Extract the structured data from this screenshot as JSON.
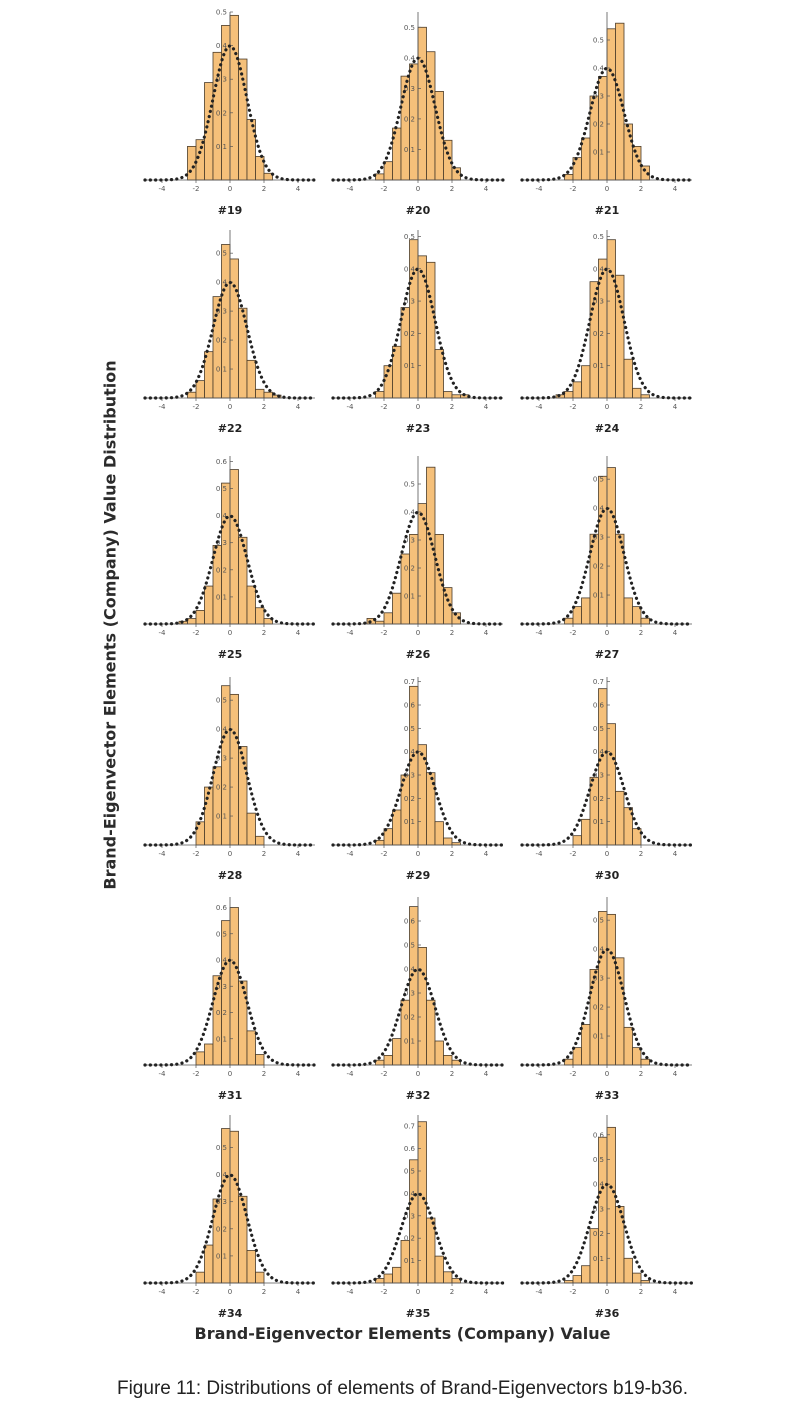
{
  "style": {
    "bar_fill": "#f5c07a",
    "bar_stroke": "#4a3b2a",
    "curve_color": "#222222",
    "axis_color": "#555555"
  },
  "figure": {
    "ylabel": "Brand-Eigenvector Elements (Company) Value Distribution",
    "xlabel": "Brand-Eigenvector Elements (Company) Value",
    "caption": "Figure 11: Distributions of elements of Brand-Eigenvectors b19-b36."
  },
  "chart_data": [
    {
      "type": "bar",
      "label": "#19",
      "bin_edges": [
        -2.5,
        -2,
        -1.5,
        -1,
        -0.5,
        0,
        0.5,
        1,
        1.5,
        2,
        2.5
      ],
      "values": [
        0.1,
        0.12,
        0.29,
        0.38,
        0.46,
        0.49,
        0.36,
        0.18,
        0.07,
        0.02
      ],
      "ylim": [
        0,
        0.5
      ],
      "yticks": [
        0.1,
        0.2,
        0.3,
        0.4,
        0.5
      ],
      "xlim": [
        -5,
        5
      ],
      "xticks": [
        -4,
        -2,
        0,
        2,
        4
      ],
      "overlay": "standard normal density (dotted)"
    },
    {
      "type": "bar",
      "label": "#20",
      "bin_edges": [
        -2.5,
        -2,
        -1.5,
        -1,
        -0.5,
        0,
        0.5,
        1,
        1.5,
        2,
        2.5
      ],
      "values": [
        0.02,
        0.06,
        0.17,
        0.34,
        0.38,
        0.5,
        0.42,
        0.29,
        0.13,
        0.04
      ],
      "ylim": [
        0,
        0.55
      ],
      "yticks": [
        0.1,
        0.2,
        0.3,
        0.4,
        0.5
      ],
      "xlim": [
        -5,
        5
      ],
      "xticks": [
        -4,
        -2,
        0,
        2,
        4
      ],
      "overlay": "standard normal density (dotted)"
    },
    {
      "type": "bar",
      "label": "#21",
      "bin_edges": [
        -2.5,
        -2,
        -1.5,
        -1,
        -0.5,
        0,
        0.5,
        1,
        1.5,
        2,
        2.5
      ],
      "values": [
        0.02,
        0.08,
        0.15,
        0.3,
        0.37,
        0.54,
        0.56,
        0.2,
        0.12,
        0.05
      ],
      "ylim": [
        0,
        0.6
      ],
      "yticks": [
        0.1,
        0.2,
        0.3,
        0.4,
        0.5
      ],
      "xlim": [
        -5,
        5
      ],
      "xticks": [
        -4,
        -2,
        0,
        2,
        4
      ],
      "overlay": "standard normal density (dotted)"
    },
    {
      "type": "bar",
      "label": "#22",
      "bin_edges": [
        -2.5,
        -2,
        -1.5,
        -1,
        -0.5,
        0,
        0.5,
        1,
        1.5,
        2,
        2.5,
        3
      ],
      "values": [
        0.02,
        0.06,
        0.16,
        0.35,
        0.53,
        0.48,
        0.31,
        0.13,
        0.03,
        0.02,
        0.01
      ],
      "ylim": [
        0,
        0.58
      ],
      "yticks": [
        0.1,
        0.2,
        0.3,
        0.4,
        0.5
      ],
      "xlim": [
        -5,
        5
      ],
      "xticks": [
        -4,
        -2,
        0,
        2,
        4
      ],
      "overlay": "standard normal density (dotted)"
    },
    {
      "type": "bar",
      "label": "#23",
      "bin_edges": [
        -2.5,
        -2,
        -1.5,
        -1,
        -0.5,
        0,
        0.5,
        1,
        1.5,
        2,
        2.5,
        3
      ],
      "values": [
        0.02,
        0.1,
        0.16,
        0.28,
        0.49,
        0.44,
        0.42,
        0.15,
        0.02,
        0.01,
        0.01
      ],
      "ylim": [
        0,
        0.52
      ],
      "yticks": [
        0.1,
        0.2,
        0.3,
        0.4,
        0.5
      ],
      "xlim": [
        -5,
        5
      ],
      "xticks": [
        -4,
        -2,
        0,
        2,
        4
      ],
      "overlay": "standard normal density (dotted)"
    },
    {
      "type": "bar",
      "label": "#24",
      "bin_edges": [
        -3,
        -2.5,
        -2,
        -1.5,
        -1,
        -0.5,
        0,
        0.5,
        1,
        1.5,
        2,
        2.5
      ],
      "values": [
        0.01,
        0.02,
        0.05,
        0.1,
        0.36,
        0.43,
        0.49,
        0.38,
        0.12,
        0.03,
        0.01
      ],
      "ylim": [
        0,
        0.52
      ],
      "yticks": [
        0.1,
        0.2,
        0.3,
        0.4,
        0.5
      ],
      "xlim": [
        -5,
        5
      ],
      "xticks": [
        -4,
        -2,
        0,
        2,
        4
      ],
      "overlay": "standard normal density (dotted)"
    },
    {
      "type": "bar",
      "label": "#25",
      "bin_edges": [
        -3,
        -2.5,
        -2,
        -1.5,
        -1,
        -0.5,
        0,
        0.5,
        1,
        1.5,
        2,
        2.5
      ],
      "values": [
        0.01,
        0.02,
        0.05,
        0.14,
        0.29,
        0.52,
        0.57,
        0.32,
        0.14,
        0.06,
        0.02
      ],
      "ylim": [
        0,
        0.62
      ],
      "yticks": [
        0.1,
        0.2,
        0.3,
        0.4,
        0.5,
        0.6
      ],
      "xlim": [
        -5,
        5
      ],
      "xticks": [
        -4,
        -2,
        0,
        2,
        4
      ],
      "overlay": "standard normal density (dotted)"
    },
    {
      "type": "bar",
      "label": "#26",
      "bin_edges": [
        -3,
        -2.5,
        -2,
        -1.5,
        -1,
        -0.5,
        0,
        0.5,
        1,
        1.5,
        2,
        2.5
      ],
      "values": [
        0.02,
        0.01,
        0.04,
        0.11,
        0.25,
        0.32,
        0.43,
        0.56,
        0.32,
        0.13,
        0.04
      ],
      "ylim": [
        0,
        0.6
      ],
      "yticks": [
        0.1,
        0.2,
        0.3,
        0.4,
        0.5
      ],
      "xlim": [
        -5,
        5
      ],
      "xticks": [
        -4,
        -2,
        0,
        2,
        4
      ],
      "overlay": "standard normal density (dotted)"
    },
    {
      "type": "bar",
      "label": "#27",
      "bin_edges": [
        -2.5,
        -2,
        -1.5,
        -1,
        -0.5,
        0,
        0.5,
        1,
        1.5,
        2,
        2.5
      ],
      "values": [
        0.02,
        0.06,
        0.09,
        0.31,
        0.51,
        0.54,
        0.31,
        0.09,
        0.06,
        0.02
      ],
      "ylim": [
        0,
        0.58
      ],
      "yticks": [
        0.1,
        0.2,
        0.3,
        0.4,
        0.5
      ],
      "xlim": [
        -5,
        5
      ],
      "xticks": [
        -4,
        -2,
        0,
        2,
        4
      ],
      "overlay": "standard normal density (dotted)"
    },
    {
      "type": "bar",
      "label": "#28",
      "bin_edges": [
        -2,
        -1.5,
        -1,
        -0.5,
        0,
        0.5,
        1,
        1.5,
        2
      ],
      "values": [
        0.08,
        0.2,
        0.27,
        0.55,
        0.52,
        0.34,
        0.11,
        0.03
      ],
      "ylim": [
        0,
        0.58
      ],
      "yticks": [
        0.1,
        0.2,
        0.3,
        0.4,
        0.5
      ],
      "xlim": [
        -5,
        5
      ],
      "xticks": [
        -4,
        -2,
        0,
        2,
        4
      ],
      "overlay": "standard normal density (dotted)"
    },
    {
      "type": "bar",
      "label": "#29",
      "bin_edges": [
        -2.5,
        -2,
        -1.5,
        -1,
        -0.5,
        0,
        0.5,
        1,
        1.5,
        2,
        2.5
      ],
      "values": [
        0.02,
        0.07,
        0.15,
        0.3,
        0.68,
        0.43,
        0.31,
        0.1,
        0.03,
        0.01
      ],
      "ylim": [
        0,
        0.72
      ],
      "yticks": [
        0.1,
        0.2,
        0.3,
        0.4,
        0.5,
        0.6,
        0.7
      ],
      "xlim": [
        -5,
        5
      ],
      "xticks": [
        -4,
        -2,
        0,
        2,
        4
      ],
      "overlay": "standard normal density (dotted)"
    },
    {
      "type": "bar",
      "label": "#30",
      "bin_edges": [
        -2,
        -1.5,
        -1,
        -0.5,
        0,
        0.5,
        1,
        1.5,
        2
      ],
      "values": [
        0.04,
        0.11,
        0.29,
        0.67,
        0.52,
        0.23,
        0.16,
        0.07
      ],
      "ylim": [
        0,
        0.72
      ],
      "yticks": [
        0.1,
        0.2,
        0.3,
        0.4,
        0.5,
        0.6,
        0.7
      ],
      "xlim": [
        -5,
        5
      ],
      "xticks": [
        -4,
        -2,
        0,
        2,
        4
      ],
      "overlay": "standard normal density (dotted)"
    },
    {
      "type": "bar",
      "label": "#31",
      "bin_edges": [
        -2,
        -1.5,
        -1,
        -0.5,
        0,
        0.5,
        1,
        1.5,
        2
      ],
      "values": [
        0.05,
        0.08,
        0.34,
        0.55,
        0.6,
        0.32,
        0.13,
        0.04
      ],
      "ylim": [
        0,
        0.64
      ],
      "yticks": [
        0.1,
        0.2,
        0.3,
        0.4,
        0.5,
        0.6
      ],
      "xlim": [
        -5,
        5
      ],
      "xticks": [
        -4,
        -2,
        0,
        2,
        4
      ],
      "overlay": "standard normal density (dotted)"
    },
    {
      "type": "bar",
      "label": "#32",
      "bin_edges": [
        -2.5,
        -2,
        -1.5,
        -1,
        -0.5,
        0,
        0.5,
        1,
        1.5,
        2,
        2.5
      ],
      "values": [
        0.02,
        0.04,
        0.11,
        0.27,
        0.66,
        0.49,
        0.27,
        0.1,
        0.04,
        0.02
      ],
      "ylim": [
        0,
        0.7
      ],
      "yticks": [
        0.1,
        0.2,
        0.3,
        0.4,
        0.5,
        0.6
      ],
      "xlim": [
        -5,
        5
      ],
      "xticks": [
        -4,
        -2,
        0,
        2,
        4
      ],
      "overlay": "standard normal density (dotted)"
    },
    {
      "type": "bar",
      "label": "#33",
      "bin_edges": [
        -2.5,
        -2,
        -1.5,
        -1,
        -0.5,
        0,
        0.5,
        1,
        1.5,
        2,
        2.5
      ],
      "values": [
        0.02,
        0.06,
        0.14,
        0.33,
        0.53,
        0.52,
        0.37,
        0.13,
        0.06,
        0.02
      ],
      "ylim": [
        0,
        0.58
      ],
      "yticks": [
        0.1,
        0.2,
        0.3,
        0.4,
        0.5
      ],
      "xlim": [
        -5,
        5
      ],
      "xticks": [
        -4,
        -2,
        0,
        2,
        4
      ],
      "overlay": "standard normal density (dotted)"
    },
    {
      "type": "bar",
      "label": "#34",
      "bin_edges": [
        -2,
        -1.5,
        -1,
        -0.5,
        0,
        0.5,
        1,
        1.5,
        2
      ],
      "values": [
        0.04,
        0.14,
        0.31,
        0.57,
        0.56,
        0.32,
        0.12,
        0.04
      ],
      "ylim": [
        0,
        0.62
      ],
      "yticks": [
        0.1,
        0.2,
        0.3,
        0.4,
        0.5
      ],
      "xlim": [
        -5,
        5
      ],
      "xticks": [
        -4,
        -2,
        0,
        2,
        4
      ],
      "overlay": "standard normal density (dotted)"
    },
    {
      "type": "bar",
      "label": "#35",
      "bin_edges": [
        -2.5,
        -2,
        -1.5,
        -1,
        -0.5,
        0,
        0.5,
        1,
        1.5,
        2,
        2.5
      ],
      "values": [
        0.02,
        0.04,
        0.07,
        0.19,
        0.55,
        0.72,
        0.29,
        0.12,
        0.05,
        0.02
      ],
      "ylim": [
        0,
        0.75
      ],
      "yticks": [
        0.1,
        0.2,
        0.3,
        0.4,
        0.5,
        0.6,
        0.7
      ],
      "xlim": [
        -5,
        5
      ],
      "xticks": [
        -4,
        -2,
        0,
        2,
        4
      ],
      "overlay": "standard normal density (dotted)"
    },
    {
      "type": "bar",
      "label": "#36",
      "bin_edges": [
        -2.5,
        -2,
        -1.5,
        -1,
        -0.5,
        0,
        0.5,
        1,
        1.5,
        2,
        2.5
      ],
      "values": [
        0.01,
        0.03,
        0.07,
        0.22,
        0.59,
        0.63,
        0.31,
        0.1,
        0.04,
        0.01
      ],
      "ylim": [
        0,
        0.68
      ],
      "yticks": [
        0.1,
        0.2,
        0.3,
        0.4,
        0.5,
        0.6
      ],
      "xlim": [
        -5,
        5
      ],
      "xticks": [
        -4,
        -2,
        0,
        2,
        4
      ],
      "overlay": "standard normal density (dotted)"
    }
  ]
}
